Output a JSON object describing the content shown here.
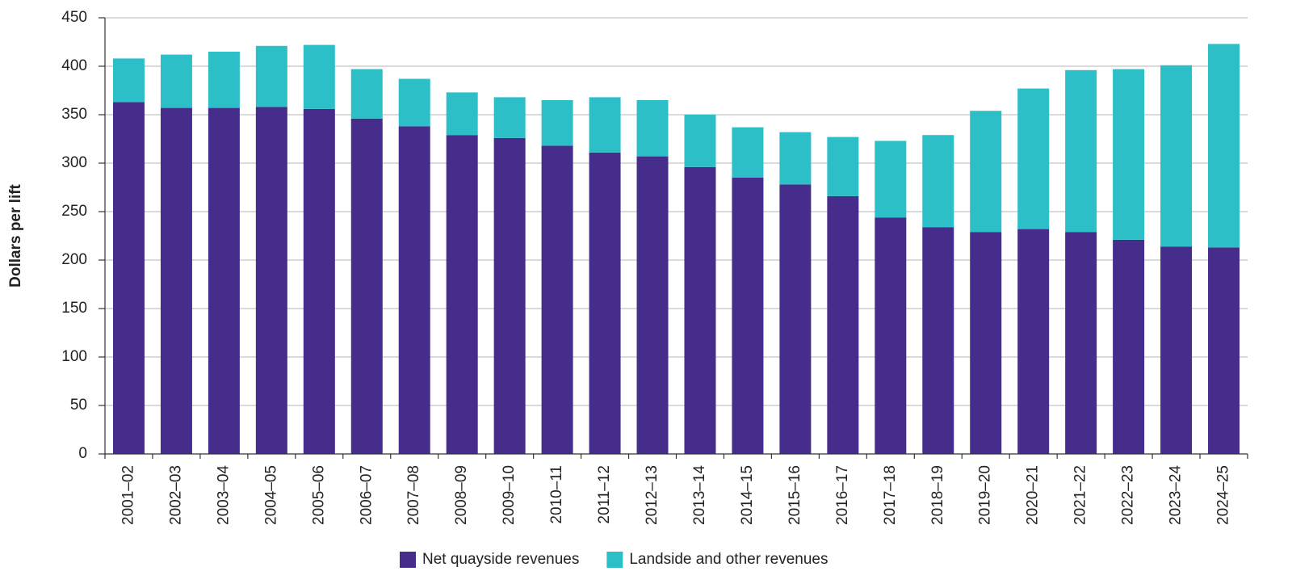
{
  "chart_data": {
    "type": "stacked_bar",
    "y_axis_label": "Dollars per lift",
    "categories": [
      "2001–02",
      "2002–03",
      "2003–04",
      "2004–05",
      "2005–06",
      "2006–07",
      "2007–08",
      "2008–09",
      "2009–10",
      "2010–11",
      "2011–12",
      "2012–13",
      "2013–14",
      "2014–15",
      "2015–16",
      "2016–17",
      "2017–18",
      "2018–19",
      "2019–20",
      "2020–21",
      "2021–22",
      "2022–23",
      "2023–24",
      "2024–25"
    ],
    "series": [
      {
        "name": "Net quayside revenues",
        "color": "#472d8b",
        "values": [
          363,
          357,
          357,
          358,
          356,
          346,
          338,
          329,
          326,
          318,
          311,
          307,
          296,
          285,
          278,
          266,
          244,
          234,
          229,
          232,
          229,
          221,
          214,
          213
        ]
      },
      {
        "name": "Landside and other revenues",
        "color": "#2dbfc7",
        "values": [
          45,
          55,
          58,
          63,
          66,
          51,
          49,
          44,
          42,
          47,
          57,
          58,
          54,
          52,
          54,
          61,
          79,
          95,
          125,
          145,
          167,
          176,
          187,
          210
        ]
      }
    ],
    "ylim": [
      0,
      450
    ],
    "yticks": [
      0,
      50,
      100,
      150,
      200,
      250,
      300,
      350,
      400,
      450
    ],
    "grid": true
  }
}
